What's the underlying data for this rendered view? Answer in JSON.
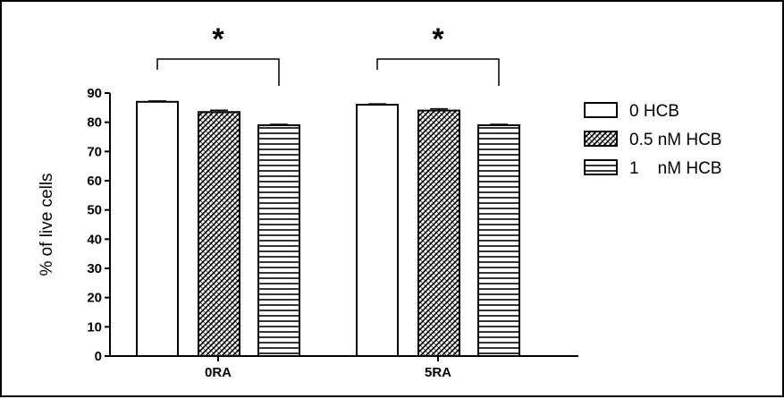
{
  "chart_data": {
    "type": "bar",
    "categories": [
      "0RA",
      "5RA"
    ],
    "series": [
      {
        "name": "0 HCB",
        "values": [
          87,
          86
        ],
        "errors": [
          0.3,
          0.3
        ],
        "pattern": "open"
      },
      {
        "name": "0.5 nM HCB",
        "values": [
          83.5,
          84
        ],
        "errors": [
          0.6,
          0.6
        ],
        "pattern": "crosshatch"
      },
      {
        "name": "1    nM HCB",
        "values": [
          79,
          79
        ],
        "errors": [
          0.3,
          0.3
        ],
        "pattern": "horizontal-lines"
      }
    ],
    "ylabel": "% of live cells",
    "xlabel": "",
    "ylim": [
      0,
      90
    ],
    "yticks": [
      0,
      10,
      20,
      30,
      40,
      50,
      60,
      70,
      80,
      90
    ],
    "significance": [
      {
        "group": "0RA",
        "from": "0 HCB",
        "to": "1    nM HCB",
        "label": "*"
      },
      {
        "group": "5RA",
        "from": "0 HCB",
        "to": "1    nM HCB",
        "label": "*"
      }
    ],
    "legend_position": "right",
    "grid": false,
    "colors": {
      "ink": "#000000",
      "fill": "#ffffff"
    }
  }
}
